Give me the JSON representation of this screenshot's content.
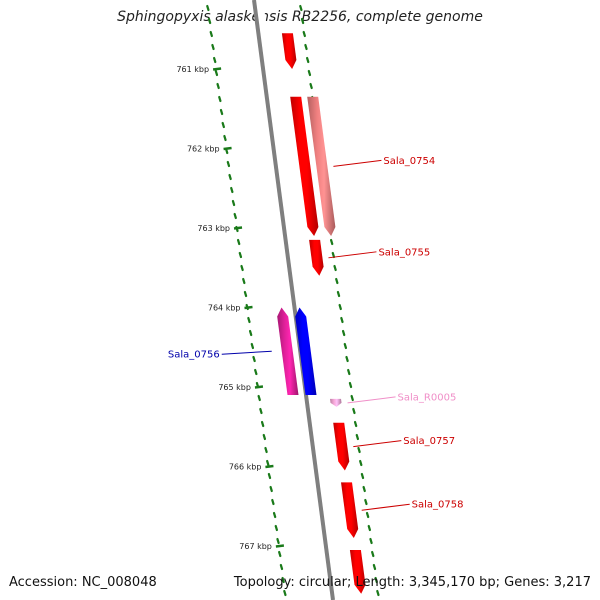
{
  "header": {
    "title": "Sphingopyxis alaskensis RB2256, complete genome"
  },
  "footer": {
    "accession": "Accession: NC_008048",
    "summary": "Topology: circular; Length: 3,345,170 bp; Genes: 3,217"
  },
  "scale": {
    "ticks": [
      {
        "label": "761 kbp",
        "kbp": 761
      },
      {
        "label": "762 kbp",
        "kbp": 762
      },
      {
        "label": "763 kbp",
        "kbp": 763
      },
      {
        "label": "764 kbp",
        "kbp": 764
      },
      {
        "label": "765 kbp",
        "kbp": 765
      },
      {
        "label": "766 kbp",
        "kbp": 766
      },
      {
        "label": "767 kbp",
        "kbp": 767
      }
    ]
  },
  "features": [
    {
      "name": "",
      "strand": "forward",
      "start_kbp": 760.55,
      "end_kbp": 761.0,
      "color": "#ff0000",
      "track": "outer"
    },
    {
      "name": "",
      "strand": "forward",
      "start_kbp": 761.35,
      "end_kbp": 763.1,
      "color": "#ff0000",
      "track": "outer"
    },
    {
      "name": "Sala_0754",
      "strand": "forward",
      "start_kbp": 761.35,
      "end_kbp": 763.1,
      "color": "#f08080",
      "track": "inner",
      "label_color": "#cc0000"
    },
    {
      "name": "Sala_0755",
      "strand": "forward",
      "start_kbp": 763.15,
      "end_kbp": 763.6,
      "color": "#ff0000",
      "track": "outer",
      "label_color": "#cc0000"
    },
    {
      "name": "Sala_0756",
      "strand": "reverse",
      "start_kbp": 764.0,
      "end_kbp": 765.1,
      "color": "#e0209a",
      "track": "reverse_outer",
      "label_color": "#0000aa"
    },
    {
      "name": "",
      "strand": "reverse",
      "start_kbp": 764.0,
      "end_kbp": 765.1,
      "color": "#0000ff",
      "track": "reverse_inner"
    },
    {
      "name": "Sala_R0005",
      "strand": "forward",
      "start_kbp": 765.15,
      "end_kbp": 765.25,
      "color": "#f7a8d8",
      "track": "outer",
      "label_color": "#f08fc8"
    },
    {
      "name": "Sala_0757",
      "strand": "forward",
      "start_kbp": 765.45,
      "end_kbp": 766.05,
      "color": "#ff0000",
      "track": "outer",
      "label_color": "#cc0000"
    },
    {
      "name": "Sala_0758",
      "strand": "forward",
      "start_kbp": 766.2,
      "end_kbp": 766.9,
      "color": "#ff0000",
      "track": "outer",
      "label_color": "#cc0000"
    },
    {
      "name": "",
      "strand": "forward",
      "start_kbp": 767.05,
      "end_kbp": 767.6,
      "color": "#ff0000",
      "track": "outer"
    }
  ],
  "colors": {
    "backbone": "#7f7f7f",
    "gc_dots": "#1a7a1a",
    "forward_cds": "#ff0000",
    "reverse_cds": "#0000ff"
  }
}
